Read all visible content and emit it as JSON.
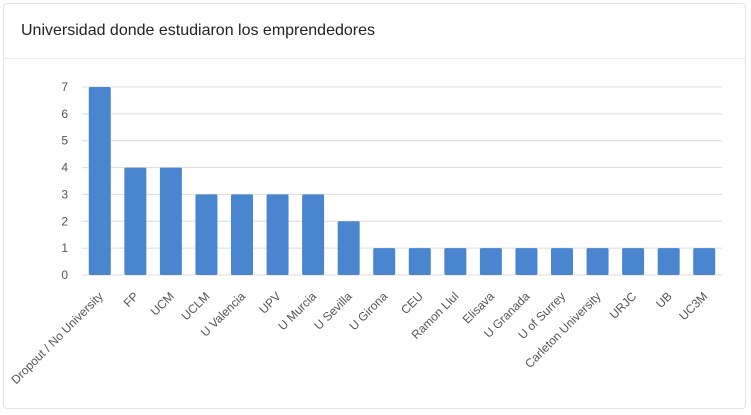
{
  "card": {
    "title": "Universidad donde estudiaron los emprendedores"
  },
  "colors": {
    "bar": "#4a86cf",
    "grid": "#dcdcdc",
    "axis_text": "#555555"
  },
  "chart_data": {
    "type": "bar",
    "title": "Universidad donde estudiaron los emprendedores",
    "xlabel": "",
    "ylabel": "",
    "ylim": [
      0,
      7
    ],
    "yticks": [
      0,
      1,
      2,
      3,
      4,
      5,
      6,
      7
    ],
    "grid": true,
    "categories": [
      "Dropout / No University",
      "FP",
      "UCM",
      "UCLM",
      "U Valencia",
      "UPV",
      "U Murcia",
      "U Sevilla",
      "U Girona",
      "CEU",
      "Ramon Llul",
      "Elisava",
      "U Granada",
      "U of Surrey",
      "Carleton University",
      "URJC",
      "UB",
      "UC3M"
    ],
    "values": [
      7,
      4,
      4,
      3,
      3,
      3,
      3,
      2,
      1,
      1,
      1,
      1,
      1,
      1,
      1,
      1,
      1,
      1
    ]
  }
}
